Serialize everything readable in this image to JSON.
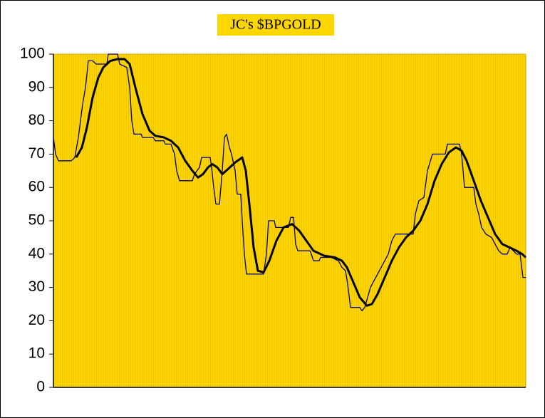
{
  "chart_data": {
    "type": "line",
    "title": "JC's $BPGOLD",
    "xlim": [
      0,
      663
    ],
    "ylim": [
      0,
      100
    ],
    "yticks": [
      0,
      10,
      20,
      30,
      40,
      50,
      60,
      70,
      80,
      90,
      100
    ],
    "background": "#ffd700",
    "series": [
      {
        "color": "#000080",
        "width": 1.3,
        "x": [
          0,
          3,
          7,
          25,
          30,
          35,
          38,
          41,
          45,
          49,
          55,
          60,
          75,
          77,
          90,
          93,
          103,
          107,
          110,
          113,
          123,
          125,
          140,
          143,
          155,
          157,
          165,
          170,
          173,
          177,
          195,
          198,
          205,
          208,
          220,
          222,
          225,
          228,
          233,
          237,
          240,
          243,
          247,
          250,
          255,
          258,
          263,
          265,
          268,
          271,
          295,
          299,
          302,
          310,
          312,
          330,
          333,
          337,
          340,
          343,
          360,
          362,
          365,
          373,
          375,
          390,
          400,
          405,
          410,
          413,
          417,
          430,
          433,
          437,
          441,
          445,
          450,
          455,
          460,
          465,
          470,
          475,
          480,
          505,
          508,
          513,
          520,
          525,
          532,
          550,
          553,
          570,
          573,
          577,
          590,
          593,
          597,
          601,
          607,
          615,
          620,
          625,
          630,
          637,
          641,
          650,
          655,
          659,
          663
        ],
        "values": [
          75,
          70,
          68,
          68,
          69,
          75,
          80,
          85,
          90,
          98,
          98,
          97,
          97,
          100,
          100,
          97,
          96,
          90,
          80,
          76,
          76,
          75,
          75,
          74,
          74,
          73,
          73,
          70,
          65,
          62,
          62,
          64,
          66,
          69,
          69,
          66,
          60,
          55,
          55,
          65,
          75,
          76,
          72,
          70,
          65,
          58,
          58,
          50,
          40,
          34,
          34,
          40,
          50,
          50,
          48,
          48,
          51,
          51,
          43,
          41,
          41,
          40,
          38,
          38,
          39,
          39,
          38,
          36,
          35,
          31,
          24,
          24,
          23,
          24,
          27,
          30,
          32,
          34,
          36,
          38,
          40,
          44,
          46,
          46,
          52,
          56,
          57,
          65,
          70,
          70,
          73,
          73,
          70,
          60,
          60,
          55,
          52,
          48,
          46,
          45,
          43,
          41,
          40,
          40,
          42,
          40,
          40,
          33,
          33
        ]
      },
      {
        "color": "#000000",
        "width": 3,
        "x": [
          32,
          40,
          47,
          55,
          63,
          70,
          80,
          90,
          100,
          107,
          115,
          125,
          135,
          143,
          155,
          165,
          175,
          185,
          195,
          203,
          210,
          217,
          223,
          230,
          237,
          245,
          255,
          265,
          270,
          275,
          281,
          287,
          295,
          303,
          313,
          323,
          335,
          345,
          355,
          365,
          380,
          395,
          405,
          412,
          420,
          430,
          440,
          447,
          455,
          465,
          475,
          485,
          495,
          505,
          515,
          525,
          535,
          545,
          555,
          565,
          573,
          580,
          590,
          600,
          610,
          620,
          630,
          640,
          650,
          658,
          663
        ],
        "values": [
          69,
          72,
          78,
          87,
          93,
          96,
          98,
          98.5,
          98.5,
          97,
          90,
          82,
          77,
          75.5,
          75,
          74,
          72,
          68,
          65,
          63,
          64,
          66,
          67,
          66,
          64,
          65.5,
          67.5,
          69,
          65,
          55,
          42,
          35,
          34.5,
          38,
          44,
          48,
          49,
          47,
          44,
          41,
          39.5,
          39,
          38,
          36,
          32,
          27,
          24.5,
          25,
          28,
          33,
          38,
          42,
          45,
          47,
          50,
          55,
          62,
          67,
          70.5,
          72,
          71,
          68,
          62,
          56,
          51,
          46,
          43,
          42,
          41,
          40,
          39
        ]
      }
    ]
  }
}
